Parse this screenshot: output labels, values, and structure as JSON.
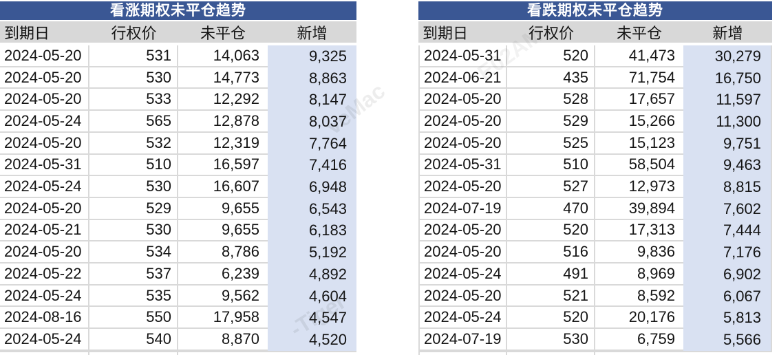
{
  "colors": {
    "title_bar": "#3A5794",
    "title_text": "#FFFFFF",
    "header_bg": "#D8D8D8",
    "accent_column_bg": "#D9E1F2",
    "border": "#D9D9D9",
    "body_text": "#141414"
  },
  "tables": [
    {
      "title": "看涨期权未平仓趋势",
      "columns": [
        "到期日",
        "行权价",
        "未平仓",
        "新增"
      ],
      "rows": [
        [
          "2024-05-20",
          "531",
          "14,063",
          "9,325"
        ],
        [
          "2024-05-20",
          "530",
          "14,773",
          "8,863"
        ],
        [
          "2024-05-20",
          "533",
          "12,292",
          "8,147"
        ],
        [
          "2024-05-24",
          "565",
          "12,878",
          "8,037"
        ],
        [
          "2024-05-20",
          "532",
          "12,319",
          "7,764"
        ],
        [
          "2024-05-31",
          "510",
          "16,597",
          "7,416"
        ],
        [
          "2024-05-24",
          "530",
          "16,607",
          "6,948"
        ],
        [
          "2024-05-20",
          "529",
          "9,655",
          "6,543"
        ],
        [
          "2024-05-21",
          "530",
          "9,655",
          "6,183"
        ],
        [
          "2024-05-20",
          "534",
          "8,786",
          "5,192"
        ],
        [
          "2024-05-22",
          "537",
          "6,239",
          "4,892"
        ],
        [
          "2024-05-24",
          "535",
          "9,562",
          "4,604"
        ],
        [
          "2024-08-16",
          "550",
          "17,958",
          "4,547"
        ],
        [
          "2024-05-24",
          "540",
          "8,870",
          "4,520"
        ]
      ]
    },
    {
      "title": "看跌期权未平仓趋势",
      "columns": [
        "到期日",
        "行权价",
        "未平仓",
        "新增"
      ],
      "rows": [
        [
          "2024-05-31",
          "520",
          "41,473",
          "30,279"
        ],
        [
          "2024-06-21",
          "435",
          "71,754",
          "16,750"
        ],
        [
          "2024-05-20",
          "528",
          "17,657",
          "11,597"
        ],
        [
          "2024-05-20",
          "529",
          "15,266",
          "11,300"
        ],
        [
          "2024-05-20",
          "525",
          "15,123",
          "9,751"
        ],
        [
          "2024-05-31",
          "510",
          "58,504",
          "9,463"
        ],
        [
          "2024-05-20",
          "527",
          "12,973",
          "8,815"
        ],
        [
          "2024-07-19",
          "470",
          "39,894",
          "7,602"
        ],
        [
          "2024-05-20",
          "520",
          "17,313",
          "7,444"
        ],
        [
          "2024-05-20",
          "516",
          "9,836",
          "7,176"
        ],
        [
          "2024-05-24",
          "491",
          "8,969",
          "6,902"
        ],
        [
          "2024-05-20",
          "521",
          "8,592",
          "6,067"
        ],
        [
          "2024-05-24",
          "520",
          "20,176",
          "5,813"
        ],
        [
          "2024-07-19",
          "530",
          "6,759",
          "5,566"
        ]
      ]
    }
  ],
  "watermark": {
    "fragments": [
      {
        "text": "veMac"
      },
      {
        "text": "-Tiger"
      },
      {
        "text": "E02AM"
      }
    ]
  }
}
